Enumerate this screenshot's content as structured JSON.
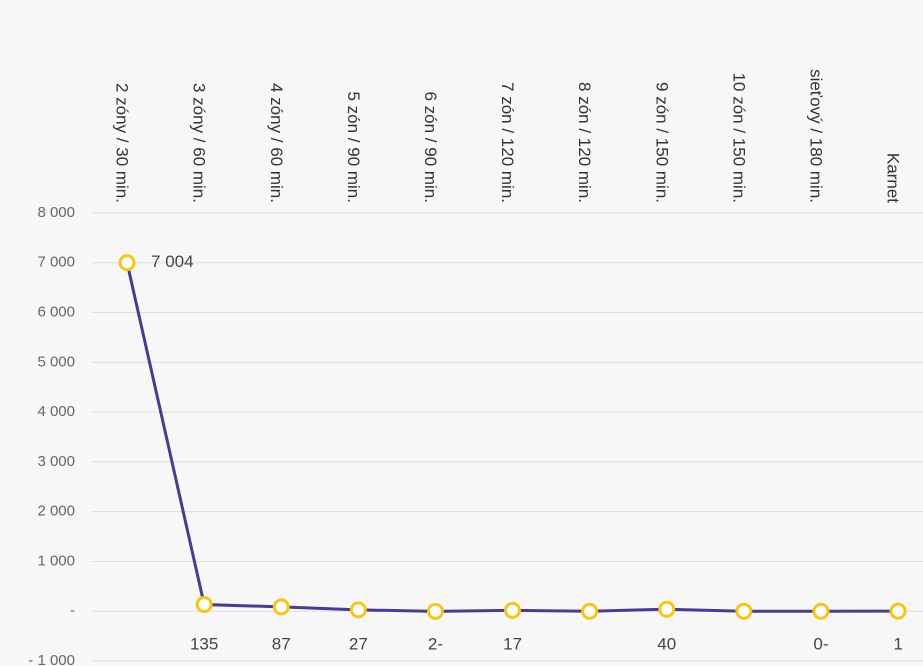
{
  "chart_data": {
    "type": "line",
    "categories": [
      "2 zóny / 30 min.",
      "3 zóny / 60 min.",
      "4 zóny / 60 min.",
      "5 zón / 90 min.",
      "6 zón / 90 min.",
      "7 zón / 120 min.",
      "8 zón / 120 min.",
      "9 zón / 150 min.",
      "10 zón / 150 min.",
      "sieťový / 180 min.",
      "Karnet"
    ],
    "series": [
      {
        "color": "#4b3a8f",
        "marker_color": "#f5c518",
        "values": [
          7004,
          135,
          87,
          27,
          -2,
          17,
          0,
          40,
          0,
          0,
          1
        ],
        "value_labels": [
          "7 004",
          "135",
          "87",
          "27",
          "2-",
          "17",
          null,
          "40",
          null,
          "0-",
          "1"
        ]
      }
    ],
    "ylim": [
      -1000,
      8000
    ],
    "yticks": [
      {
        "value": -1000,
        "label": "- 1 000"
      },
      {
        "value": 0,
        "label": "-"
      },
      {
        "value": 1000,
        "label": "1 000"
      },
      {
        "value": 2000,
        "label": "2 000"
      },
      {
        "value": 3000,
        "label": "3 000"
      },
      {
        "value": 4000,
        "label": "4 000"
      },
      {
        "value": 5000,
        "label": "5 000"
      },
      {
        "value": 6000,
        "label": "6 000"
      },
      {
        "value": 7000,
        "label": "7 000"
      },
      {
        "value": 8000,
        "label": "8 000"
      }
    ],
    "grid": true
  }
}
